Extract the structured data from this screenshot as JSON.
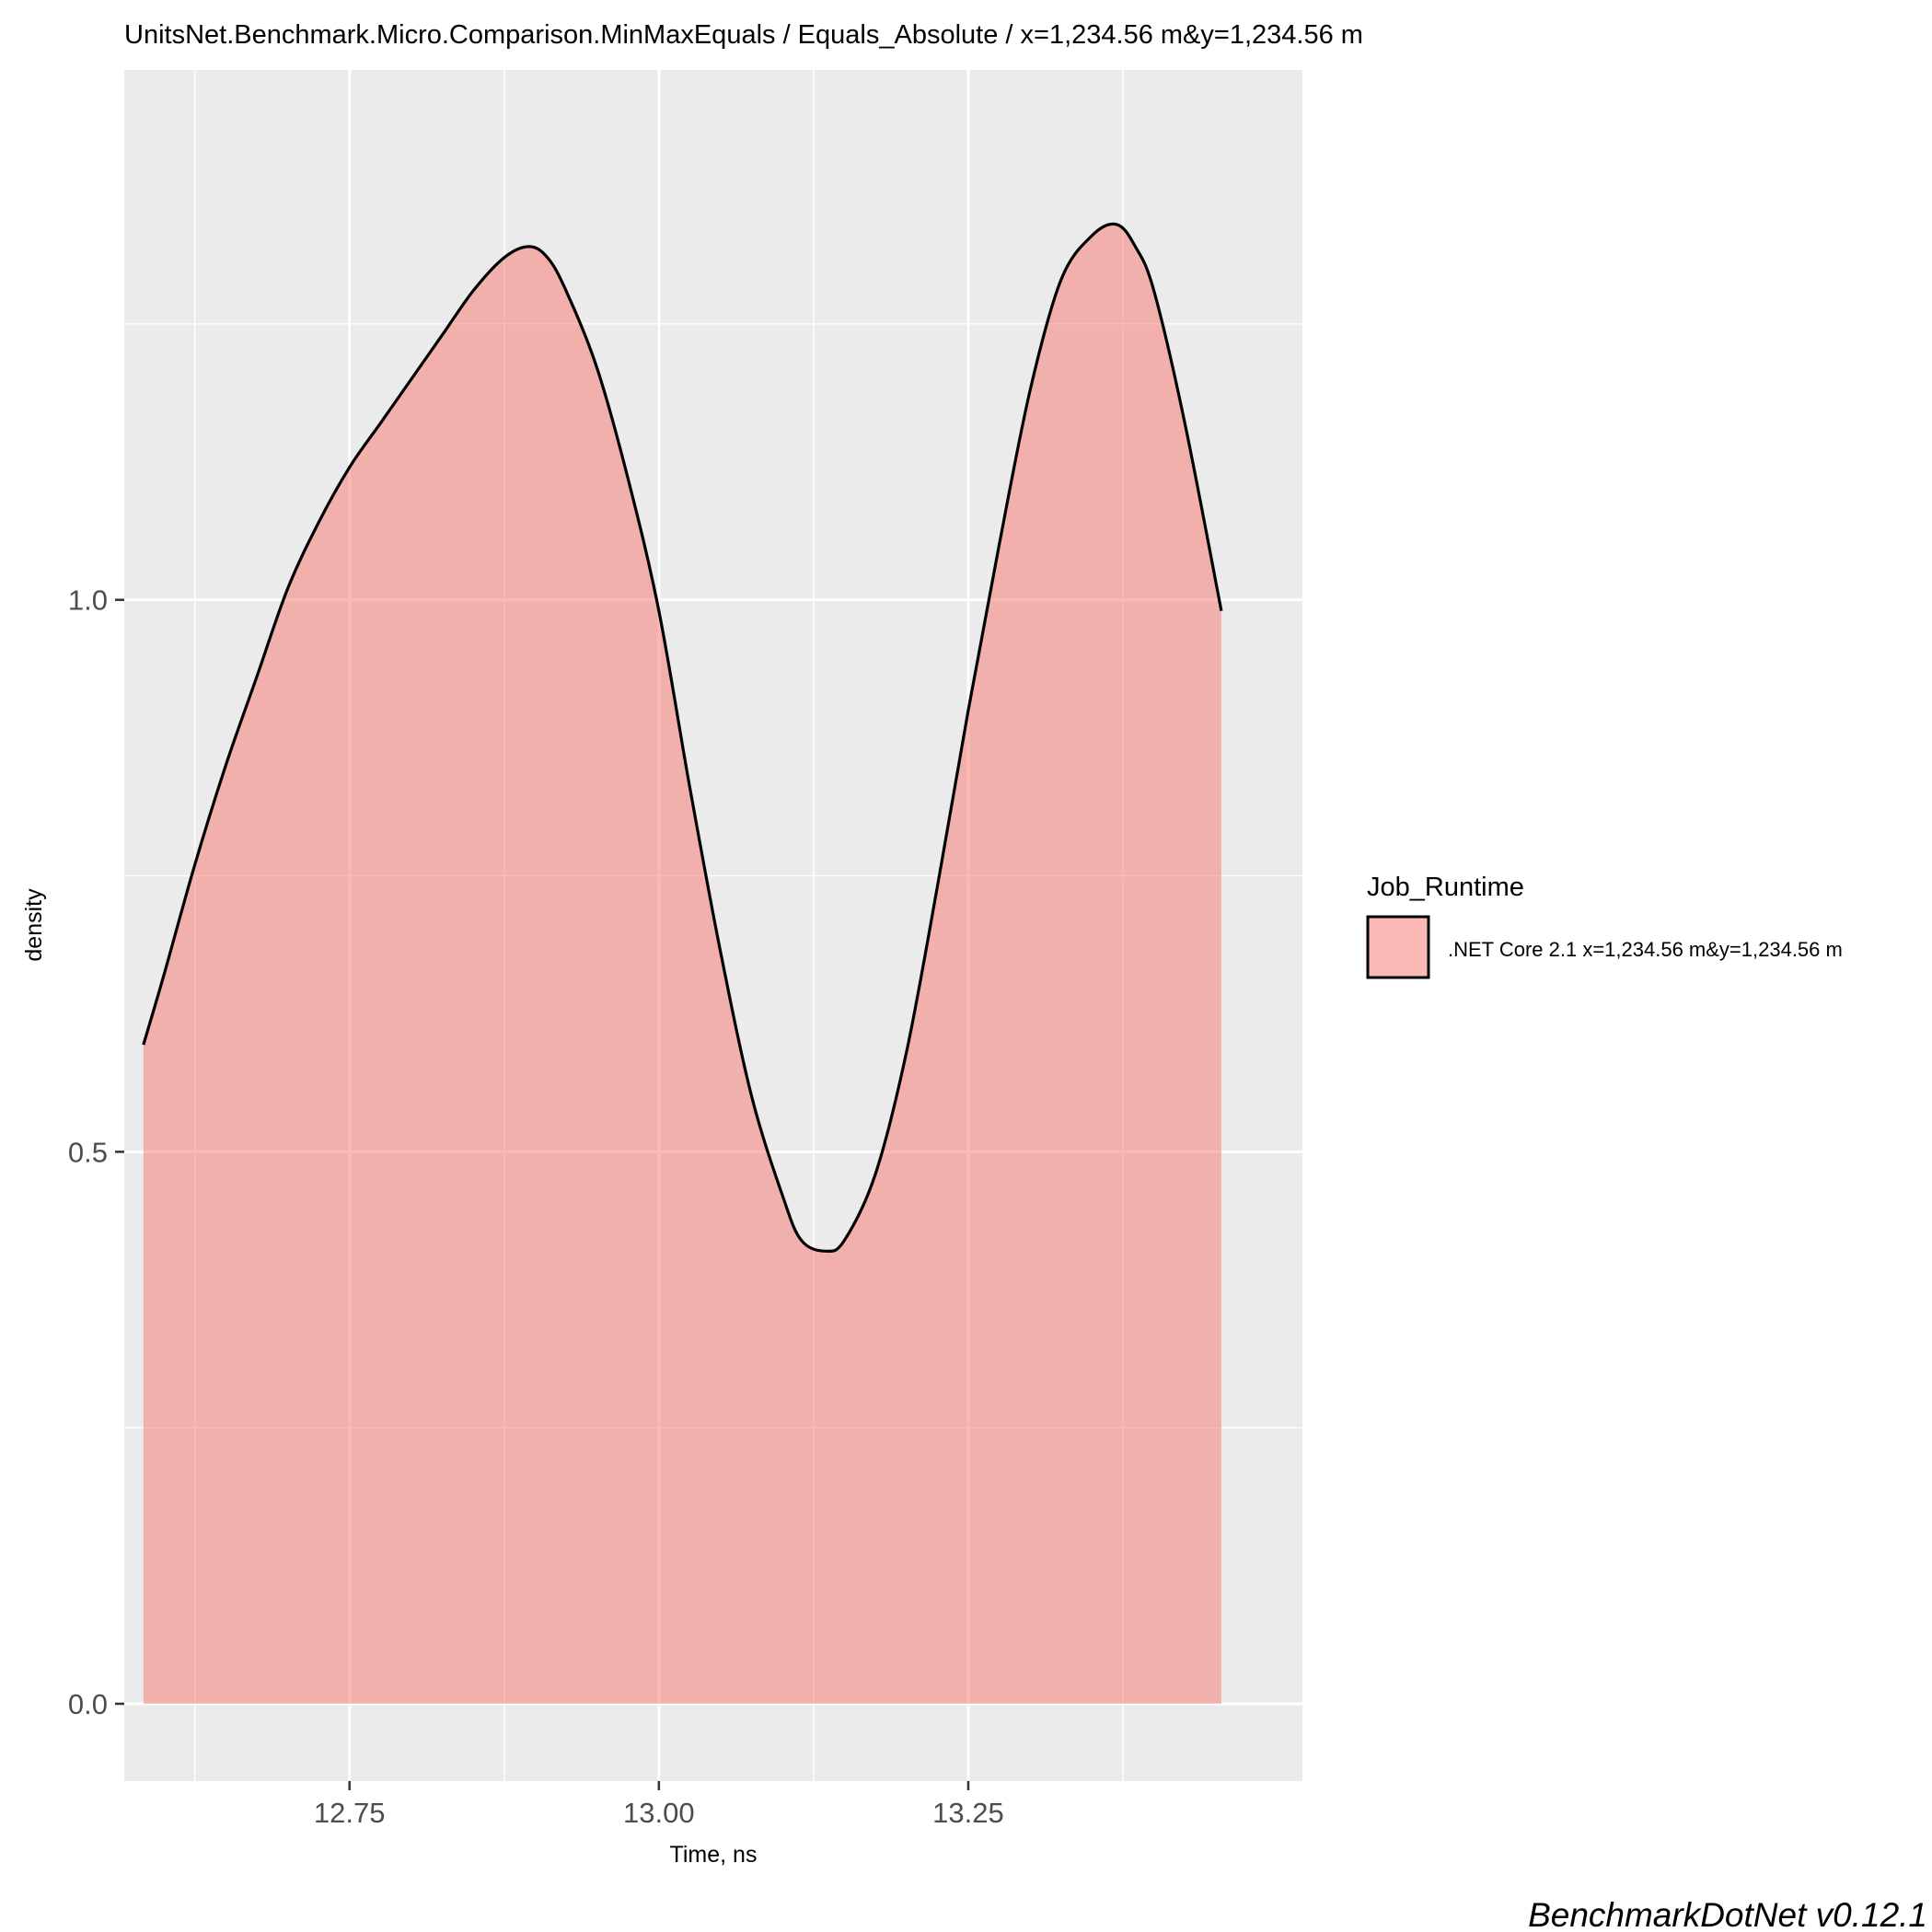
{
  "colors": {
    "panel_background": "#ebebeb",
    "grid_major": "#ffffff",
    "density_fill": "#f8766d",
    "density_fill_opacity": 0.5,
    "density_line": "#000000",
    "tick_text": "#4d4d4d"
  },
  "chart_data": {
    "type": "area",
    "title": "UnitsNet.Benchmark.Micro.Comparison.MinMaxEquals / Equals_Absolute / x=1,234.56 m&y=1,234.56 m",
    "xlabel": "Time, ns",
    "ylabel": "density",
    "xlim": [
      12.568,
      13.52
    ],
    "ylim": [
      -0.07,
      1.48
    ],
    "x_ticks": [
      12.75,
      13.0,
      13.25
    ],
    "x_tick_labels": [
      "12.75",
      "13.00",
      "13.25"
    ],
    "y_ticks": [
      0.0,
      0.5,
      1.0
    ],
    "y_tick_labels": [
      "0.0",
      "0.5",
      "1.0"
    ],
    "grid": true,
    "legend": {
      "title": "Job_Runtime",
      "position": "right",
      "entries": [
        ".NET Core 2.1 x=1,234.56 m&y=1,234.56 m"
      ]
    },
    "series": [
      {
        "name": ".NET Core 2.1 x=1,234.56 m&y=1,234.56 m",
        "x": [
          12.5835,
          12.6,
          12.625,
          12.65,
          12.675,
          12.7,
          12.725,
          12.75,
          12.775,
          12.8,
          12.825,
          12.85,
          12.875,
          12.895,
          12.91,
          12.925,
          12.95,
          12.975,
          13.0,
          13.025,
          13.05,
          13.075,
          13.1,
          13.115,
          13.135,
          13.15,
          13.175,
          13.2,
          13.225,
          13.25,
          13.275,
          13.3,
          13.325,
          13.35,
          13.37,
          13.385,
          13.4,
          13.425,
          13.4545
        ],
        "y": [
          0.597,
          0.66,
          0.76,
          0.85,
          0.93,
          1.01,
          1.07,
          1.12,
          1.16,
          1.2,
          1.24,
          1.28,
          1.31,
          1.32,
          1.31,
          1.28,
          1.21,
          1.11,
          0.99,
          0.83,
          0.68,
          0.55,
          0.46,
          0.42,
          0.41,
          0.42,
          0.48,
          0.59,
          0.74,
          0.9,
          1.05,
          1.19,
          1.29,
          1.33,
          1.34,
          1.32,
          1.28,
          1.16,
          0.99
        ]
      }
    ]
  },
  "caption": "BenchmarkDotNet v0.12.1"
}
